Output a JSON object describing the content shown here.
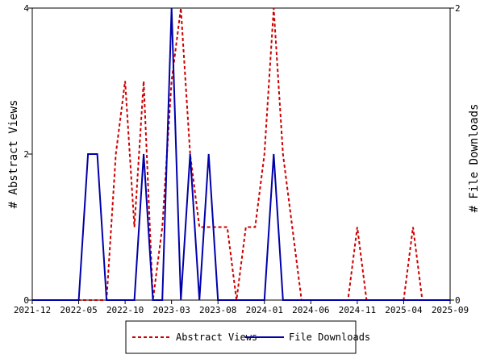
{
  "chart_data": {
    "type": "line",
    "x_tick_labels": [
      "2021-12",
      "2022-05",
      "2022-10",
      "2023-03",
      "2023-08",
      "2024-01",
      "2024-06",
      "2024-11",
      "2025-04",
      "2025-09"
    ],
    "x": [
      "2021-12",
      "2022-01",
      "2022-02",
      "2022-03",
      "2022-04",
      "2022-05",
      "2022-06",
      "2022-07",
      "2022-08",
      "2022-09",
      "2022-10",
      "2022-11",
      "2022-12",
      "2023-01",
      "2023-02",
      "2023-03",
      "2023-04",
      "2023-05",
      "2023-06",
      "2023-07",
      "2023-08",
      "2023-09",
      "2023-10",
      "2023-11",
      "2023-12",
      "2024-01",
      "2024-02",
      "2024-03",
      "2024-04",
      "2024-05",
      "2024-06",
      "2024-07",
      "2024-08",
      "2024-09",
      "2024-10",
      "2024-11",
      "2024-12",
      "2025-01",
      "2025-02",
      "2025-03",
      "2025-04",
      "2025-05",
      "2025-06",
      "2025-07",
      "2025-08",
      "2025-09"
    ],
    "series": [
      {
        "name": "Abstract Views",
        "axis": "left",
        "color": "#cc0000",
        "style": "dashed",
        "values": [
          0,
          0,
          0,
          0,
          0,
          0,
          0,
          0,
          0,
          2,
          3,
          1,
          3,
          0,
          1,
          3,
          4,
          2,
          1,
          1,
          1,
          1,
          0,
          1,
          1,
          2,
          4,
          2,
          1,
          0,
          0,
          0,
          0,
          0,
          0,
          1,
          0,
          0,
          0,
          0,
          0,
          1,
          0,
          0,
          0,
          0
        ]
      },
      {
        "name": "File Downloads",
        "axis": "right",
        "color": "#0000aa",
        "style": "solid",
        "values": [
          0,
          0,
          0,
          0,
          0,
          0,
          1,
          1,
          0,
          0,
          0,
          0,
          1,
          0,
          0,
          2,
          0,
          1,
          0,
          1,
          0,
          0,
          0,
          0,
          0,
          0,
          1,
          0,
          0,
          0,
          0,
          0,
          0,
          0,
          0,
          0,
          0,
          0,
          0,
          0,
          0,
          0,
          0,
          0,
          0,
          0
        ]
      }
    ],
    "y_left": {
      "label": "# Abstract Views",
      "ylim": [
        0,
        4
      ],
      "ticks": [
        "0",
        "2",
        "4"
      ]
    },
    "y_right": {
      "label": "# File Downloads",
      "ylim": [
        0,
        2
      ],
      "ticks": [
        "0",
        "2"
      ]
    },
    "legend": {
      "placement": "bottom",
      "entries": [
        "Abstract Views",
        "File Downloads"
      ]
    },
    "grid": false
  }
}
